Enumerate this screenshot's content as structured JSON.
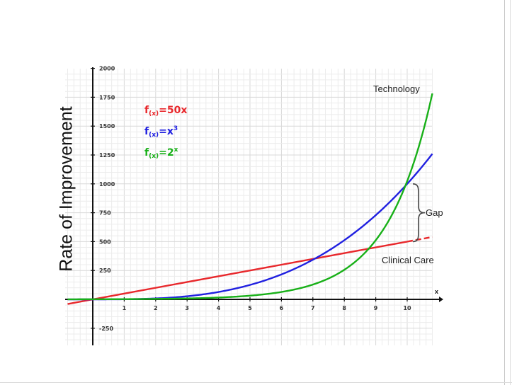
{
  "chart_data": {
    "type": "line",
    "ylabel": "Rate of Improvement",
    "xlabel": "x",
    "xlim": [
      -0.8,
      10.8
    ],
    "ylim": [
      -300,
      2000
    ],
    "x_ticks": [
      1,
      2,
      3,
      4,
      5,
      6,
      7,
      8,
      9,
      10
    ],
    "y_ticks": [
      -250,
      250,
      500,
      750,
      1000,
      1250,
      1500,
      1750,
      2000
    ],
    "grid": true,
    "series": [
      {
        "name": "f(x)=50x",
        "color": "#e8282c",
        "x": [
          -0.8,
          0,
          1,
          2,
          3,
          4,
          5,
          6,
          7,
          8,
          9,
          10,
          10.8
        ],
        "y": [
          -40,
          0,
          50,
          100,
          150,
          200,
          250,
          300,
          350,
          400,
          450,
          500,
          540
        ]
      },
      {
        "name": "f(x)=x^3",
        "color": "#2020e0",
        "x": [
          -0.8,
          0,
          1,
          2,
          3,
          4,
          5,
          6,
          7,
          8,
          9,
          10,
          10.8
        ],
        "y": [
          -0.5,
          0,
          1,
          8,
          27,
          64,
          125,
          216,
          343,
          512,
          729,
          1000,
          1260
        ]
      },
      {
        "name": "f(x)=2^x",
        "color": "#18b018",
        "x": [
          -0.8,
          0,
          1,
          2,
          3,
          4,
          5,
          6,
          7,
          8,
          9,
          10,
          10.8
        ],
        "y": [
          0.57,
          1,
          2,
          4,
          8,
          16,
          32,
          64,
          128,
          256,
          512,
          1024,
          1783
        ]
      }
    ],
    "legend": [
      {
        "label_main": "f",
        "label_sub": "(x)",
        "label_rest": "=50x",
        "label_sup": "",
        "color": "#e8282c"
      },
      {
        "label_main": "f",
        "label_sub": "(x)",
        "label_rest": "=x",
        "label_sup": "3",
        "color": "#2020e0"
      },
      {
        "label_main": "f",
        "label_sub": "(x)",
        "label_rest": "=2",
        "label_sup": "x",
        "color": "#18b018"
      }
    ],
    "annotations": {
      "technology": "Technology",
      "gap": "Gap",
      "clinical_care": "Clinical Care",
      "gap_x": 10,
      "gap_top": 1000,
      "gap_bottom": 500
    }
  }
}
